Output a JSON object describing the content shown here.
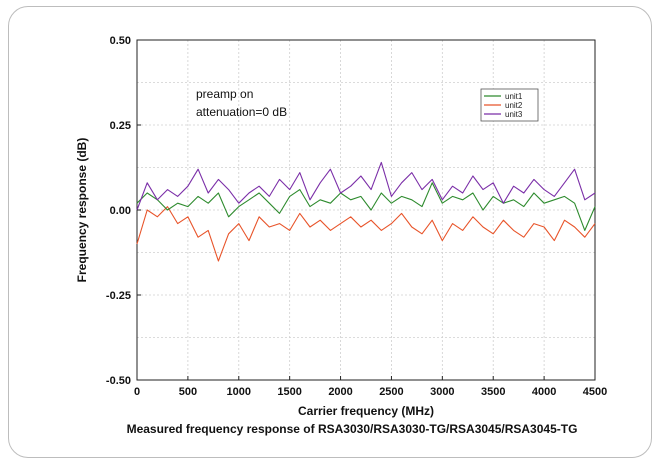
{
  "chart_data": {
    "type": "line",
    "title": "",
    "caption": "Measured frequency response of RSA3030/RSA3030-TG/RSA3045/RSA3045-TG",
    "xlabel": "Carrier frequency (MHz)",
    "ylabel": "Frequency response (dB)",
    "xlim": [
      0,
      4500
    ],
    "ylim": [
      -0.5,
      0.5
    ],
    "xticks": [
      "0",
      "500",
      "1000",
      "1500",
      "2000",
      "2500",
      "3000",
      "3500",
      "4000",
      "4500"
    ],
    "yticks": [
      "0.50",
      "0.25",
      "0.00",
      "-0.25",
      "-0.50"
    ],
    "grid": true,
    "legend_position": "top-right",
    "annotations": [
      "preamp on",
      "attenuation=0 dB"
    ],
    "x": [
      0,
      100,
      200,
      300,
      400,
      500,
      600,
      700,
      800,
      900,
      1000,
      1100,
      1200,
      1300,
      1400,
      1500,
      1600,
      1700,
      1800,
      1900,
      2000,
      2100,
      2200,
      2300,
      2400,
      2500,
      2600,
      2700,
      2800,
      2900,
      3000,
      3100,
      3200,
      3300,
      3400,
      3500,
      3600,
      3700,
      3800,
      3900,
      4000,
      4100,
      4200,
      4300,
      4400,
      4500
    ],
    "series": [
      {
        "name": "unit1",
        "color": "#2e8b2e",
        "values": [
          0.02,
          0.05,
          0.03,
          0.0,
          0.02,
          0.01,
          0.04,
          0.02,
          0.05,
          -0.02,
          0.01,
          0.03,
          0.05,
          0.02,
          -0.01,
          0.04,
          0.06,
          0.01,
          0.03,
          0.02,
          0.05,
          0.03,
          0.04,
          0.0,
          0.05,
          0.02,
          0.04,
          0.03,
          0.01,
          0.08,
          0.02,
          0.04,
          0.03,
          0.05,
          0.0,
          0.04,
          0.02,
          0.03,
          0.01,
          0.05,
          0.02,
          0.03,
          0.04,
          0.02,
          -0.06,
          0.01
        ]
      },
      {
        "name": "unit2",
        "color": "#e8542a",
        "values": [
          -0.1,
          0.0,
          -0.02,
          0.01,
          -0.04,
          -0.02,
          -0.08,
          -0.06,
          -0.15,
          -0.07,
          -0.04,
          -0.09,
          -0.02,
          -0.05,
          -0.04,
          -0.06,
          -0.01,
          -0.05,
          -0.03,
          -0.06,
          -0.04,
          -0.02,
          -0.05,
          -0.03,
          -0.06,
          -0.04,
          -0.01,
          -0.05,
          -0.07,
          -0.03,
          -0.09,
          -0.04,
          -0.06,
          -0.02,
          -0.05,
          -0.07,
          -0.03,
          -0.06,
          -0.08,
          -0.04,
          -0.05,
          -0.09,
          -0.03,
          -0.05,
          -0.08,
          -0.04
        ]
      },
      {
        "name": "unit3",
        "color": "#7b2fa8",
        "values": [
          0.0,
          0.08,
          0.03,
          0.06,
          0.04,
          0.07,
          0.12,
          0.05,
          0.09,
          0.06,
          0.02,
          0.05,
          0.07,
          0.04,
          0.09,
          0.06,
          0.11,
          0.03,
          0.08,
          0.12,
          0.05,
          0.07,
          0.1,
          0.06,
          0.14,
          0.04,
          0.08,
          0.11,
          0.06,
          0.09,
          0.03,
          0.07,
          0.05,
          0.1,
          0.06,
          0.08,
          0.02,
          0.07,
          0.05,
          0.09,
          0.06,
          0.04,
          0.08,
          0.12,
          0.03,
          0.05
        ]
      }
    ]
  }
}
